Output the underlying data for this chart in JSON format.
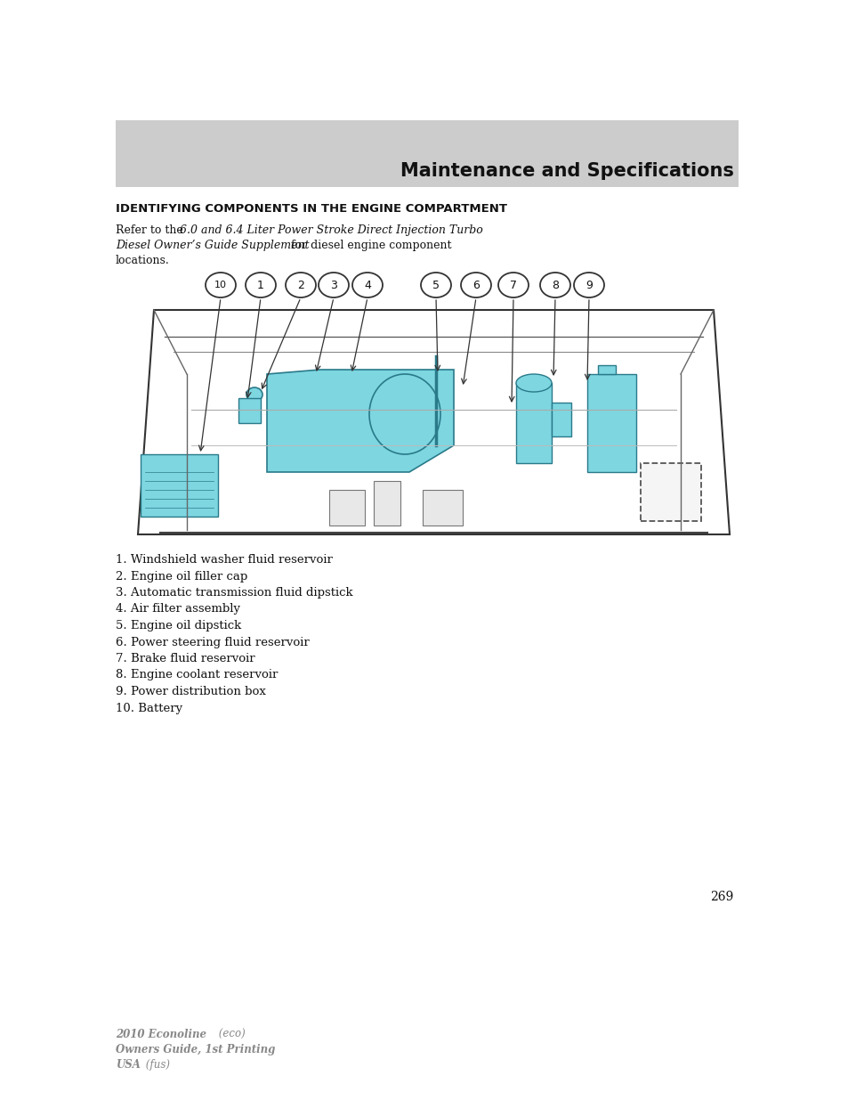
{
  "page_bg": "#ffffff",
  "header_bg": "#cccccc",
  "header_text": "Maintenance and Specifications",
  "header_text_color": "#111111",
  "section_title": "IDENTIFYING COMPONENTS IN THE ENGINE COMPARTMENT",
  "component_labels": [
    "1. Windshield washer fluid reservoir",
    "2. Engine oil filler cap",
    "3. Automatic transmission fluid dipstick",
    "4. Air filter assembly",
    "5. Engine oil dipstick",
    "6. Power steering fluid reservoir",
    "7. Brake fluid reservoir",
    "8. Engine coolant reservoir",
    "9. Power distribution box",
    "10. Battery"
  ],
  "page_number": "269",
  "footer_line1_bold": "2010 Econoline",
  "footer_line1_italic": " (eco)",
  "footer_line2_bold": "Owners Guide, 1st Printing",
  "footer_line3_bold": "USA",
  "footer_line3_italic": " (fus)",
  "callout_numbers": [
    "10",
    "1",
    "2",
    "3",
    "4",
    "5",
    "6",
    "7",
    "8",
    "9"
  ],
  "highlight_color": "#7dd6e0",
  "line_color": "#333333",
  "font_color": "#111111",
  "gray_color": "#888888"
}
